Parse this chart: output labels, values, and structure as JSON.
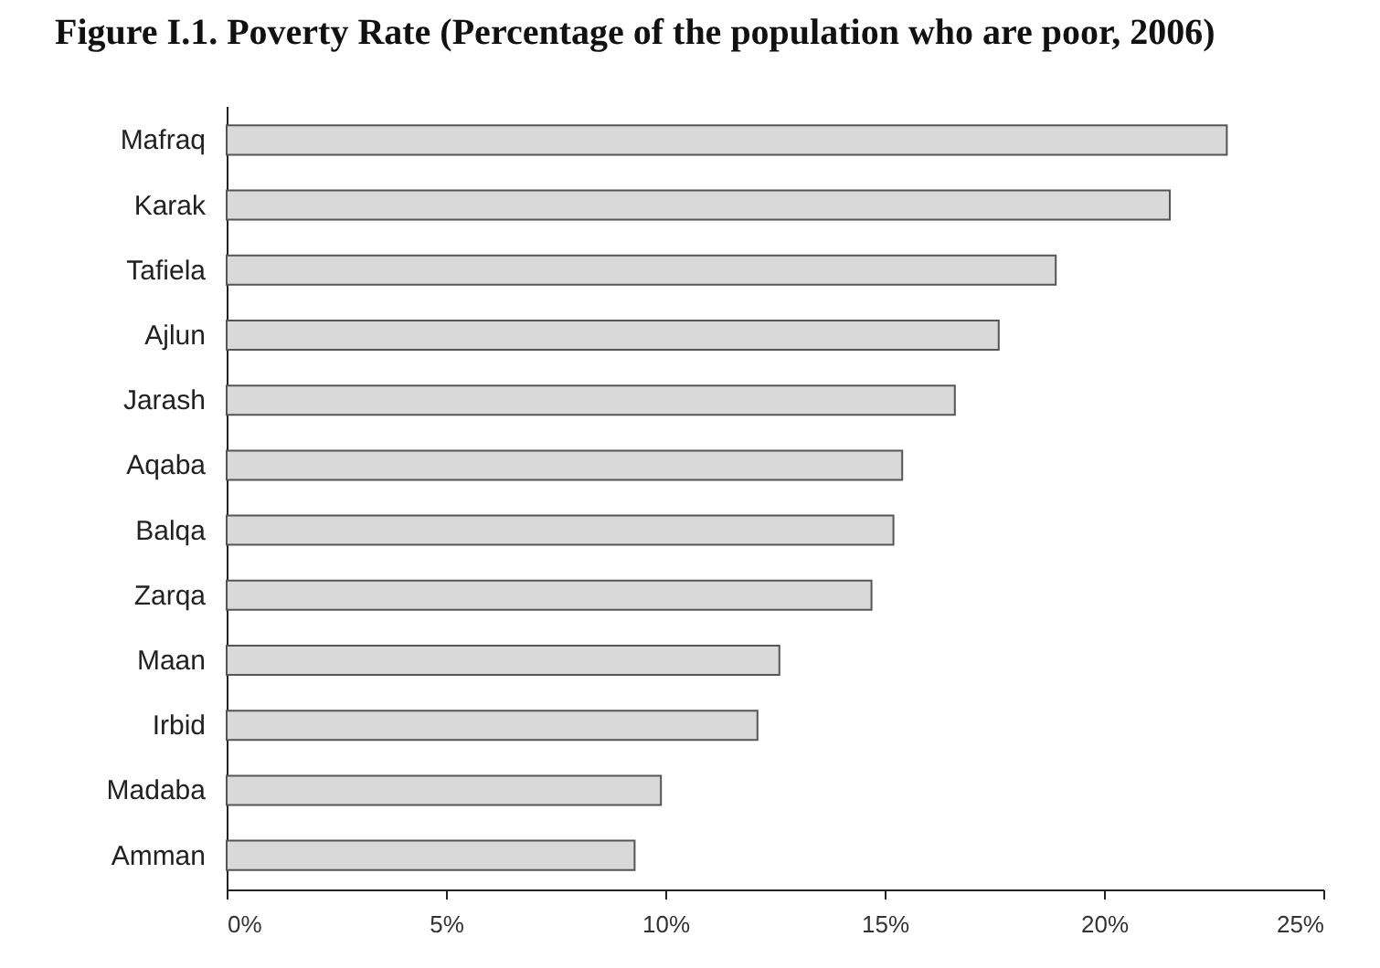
{
  "chart_data": {
    "type": "bar",
    "orientation": "horizontal",
    "title": "Figure I.1. Poverty Rate (Percentage of the population who are poor, 2006)",
    "categories": [
      "Mafraq",
      "Karak",
      "Tafiela",
      "Ajlun",
      "Jarash",
      "Aqaba",
      "Balqa",
      "Zarqa",
      "Maan",
      "Irbid",
      "Madaba",
      "Amman"
    ],
    "values": [
      22.8,
      21.5,
      18.9,
      17.6,
      16.6,
      15.4,
      15.2,
      14.7,
      12.6,
      12.1,
      9.9,
      9.3
    ],
    "color": "#d9d9d9",
    "xlim": [
      0,
      25
    ],
    "xticks": [
      {
        "value": 0,
        "label": "0%"
      },
      {
        "value": 5,
        "label": "5%"
      },
      {
        "value": 10,
        "label": "10%"
      },
      {
        "value": 15,
        "label": "15%"
      },
      {
        "value": 20,
        "label": "20%"
      },
      {
        "value": 25,
        "label": "25%"
      }
    ]
  }
}
